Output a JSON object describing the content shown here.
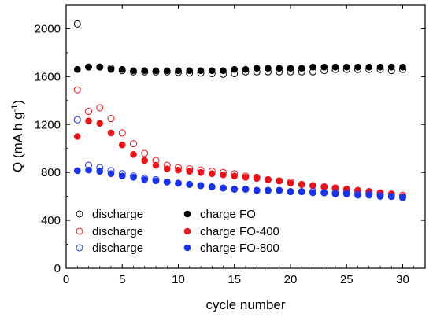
{
  "chart_data": {
    "type": "scatter",
    "xlabel": "cycle number",
    "ylabel": "Q (mA h g⁻¹)",
    "xlim": [
      0,
      32
    ],
    "ylim": [
      0,
      2200
    ],
    "xticks": [
      0,
      5,
      10,
      15,
      20,
      25,
      30
    ],
    "yticks": [
      0,
      400,
      800,
      1200,
      1600,
      2000
    ],
    "grid": false,
    "legend_position": "bottom-left",
    "x": [
      1,
      2,
      3,
      4,
      5,
      6,
      7,
      8,
      9,
      10,
      11,
      12,
      13,
      14,
      15,
      16,
      17,
      18,
      19,
      20,
      21,
      22,
      23,
      24,
      25,
      26,
      27,
      28,
      29,
      30
    ],
    "series": [
      {
        "name": "discharge",
        "marker": "open",
        "color": "#000000",
        "values": [
          2040,
          1680,
          1680,
          1670,
          1650,
          1640,
          1640,
          1640,
          1640,
          1635,
          1630,
          1630,
          1625,
          1620,
          1625,
          1640,
          1640,
          1640,
          1640,
          1640,
          1640,
          1640,
          1650,
          1660,
          1660,
          1660,
          1660,
          1660,
          1650,
          1660
        ]
      },
      {
        "name": "charge FO",
        "marker": "filled",
        "color": "#000000",
        "values": [
          1660,
          1680,
          1680,
          1660,
          1660,
          1650,
          1650,
          1650,
          1650,
          1650,
          1650,
          1650,
          1650,
          1650,
          1660,
          1660,
          1670,
          1670,
          1670,
          1670,
          1670,
          1680,
          1680,
          1680,
          1680,
          1680,
          1680,
          1680,
          1680,
          1680
        ]
      },
      {
        "name": "discharge",
        "marker": "open",
        "color": "#e8141c",
        "values": [
          1490,
          1310,
          1340,
          1250,
          1130,
          1040,
          960,
          900,
          860,
          840,
          830,
          820,
          810,
          800,
          790,
          770,
          760,
          740,
          730,
          720,
          700,
          690,
          680,
          670,
          660,
          650,
          640,
          630,
          620,
          610
        ]
      },
      {
        "name": "charge FO-400",
        "marker": "filled",
        "color": "#e8141c",
        "values": [
          1100,
          1230,
          1210,
          1130,
          1030,
          950,
          900,
          860,
          830,
          820,
          810,
          800,
          790,
          780,
          770,
          760,
          750,
          740,
          730,
          710,
          700,
          690,
          680,
          670,
          660,
          650,
          640,
          630,
          620,
          600
        ]
      },
      {
        "name": "discharge",
        "marker": "open",
        "color": "#1a33e6",
        "values": [
          1240,
          860,
          840,
          815,
          790,
          770,
          750,
          740,
          720,
          710,
          700,
          690,
          680,
          670,
          660,
          660,
          650,
          650,
          650,
          640,
          640,
          640,
          630,
          630,
          630,
          620,
          620,
          610,
          600,
          590
        ]
      },
      {
        "name": "charge FO-800",
        "marker": "filled",
        "color": "#1a33e6",
        "values": [
          815,
          820,
          810,
          790,
          770,
          760,
          740,
          730,
          720,
          710,
          700,
          690,
          680,
          670,
          660,
          660,
          650,
          650,
          650,
          640,
          640,
          630,
          630,
          620,
          620,
          610,
          610,
          600,
          600,
          595
        ]
      }
    ]
  }
}
